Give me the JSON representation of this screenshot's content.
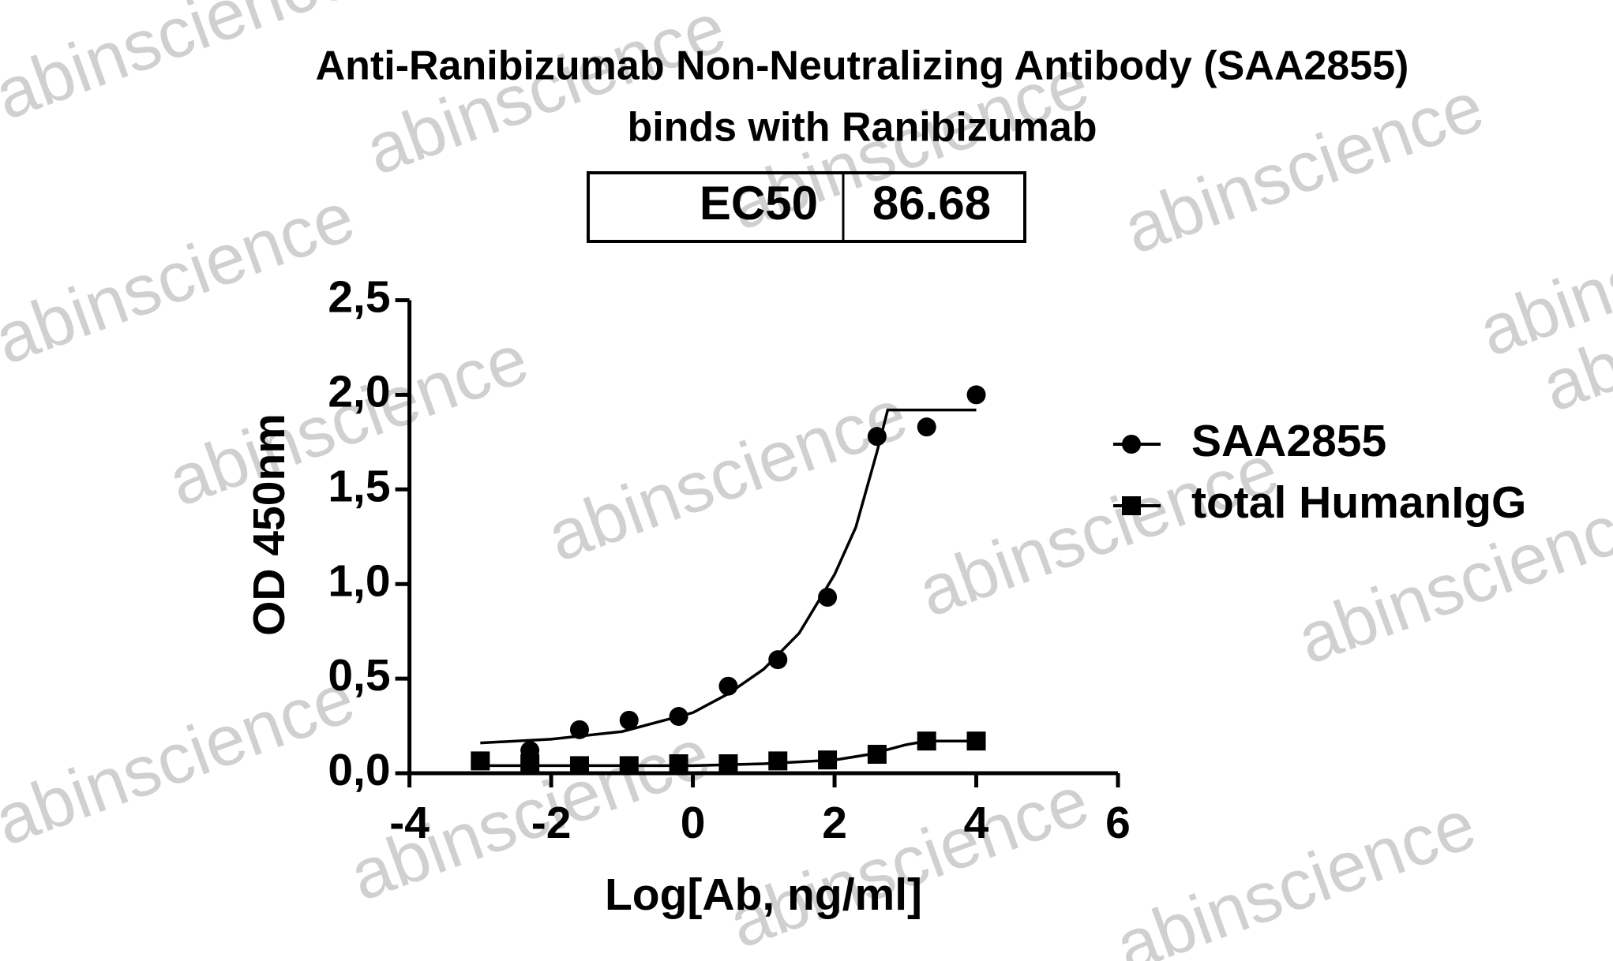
{
  "chart_data": {
    "type": "scatter",
    "title_lines": [
      "Anti-Ranibizumab Non-Neutralizing Antibody (SAA2855)",
      "binds with Ranibizumab"
    ],
    "ec50_table": {
      "label": "EC50",
      "value": 86.68
    },
    "x_label": "Log[Ab, ng/ml]",
    "y_label": "OD 450nm",
    "xlim": [
      -4,
      6
    ],
    "xticks": [
      -4,
      -2,
      0,
      2,
      4,
      6
    ],
    "ylim": [
      0,
      2.5
    ],
    "yticks": [
      {
        "value": 0,
        "label": "0,0"
      },
      {
        "value": 0.5,
        "label": "0,5"
      },
      {
        "value": 1,
        "label": "1,0"
      },
      {
        "value": 1.5,
        "label": "1,5"
      },
      {
        "value": 2,
        "label": "2,0"
      },
      {
        "value": 2.5,
        "label": "2,5"
      }
    ],
    "x": [
      -3.0,
      -2.3,
      -1.6,
      -0.9,
      -0.2,
      0.5,
      1.2,
      1.9,
      2.6,
      3.3,
      4.0
    ],
    "series": [
      {
        "name": "SAA2855",
        "color": "#000000",
        "marker": "circle",
        "values": [
          0.065,
          0.12,
          0.23,
          0.28,
          0.3,
          0.46,
          0.6,
          0.93,
          1.78,
          1.83,
          2.0
        ],
        "fit": {
          "x": [
            -3,
            -2,
            -1,
            0,
            0.5,
            1,
            1.5,
            2,
            2.3,
            2.6,
            2.75,
            3,
            4
          ],
          "y": [
            0.16,
            0.18,
            0.22,
            0.32,
            0.42,
            0.55,
            0.74,
            1.05,
            1.3,
            1.7,
            1.92,
            1.92,
            1.92
          ]
        }
      },
      {
        "name": "total HumanIgG",
        "color": "#000000",
        "marker": "square",
        "values": [
          0.065,
          0.05,
          0.04,
          0.04,
          0.05,
          0.05,
          0.065,
          0.07,
          0.1,
          0.17,
          0.17
        ],
        "fit": {
          "x": [
            -3,
            0,
            1,
            2,
            2.5,
            3,
            3.3,
            4
          ],
          "y": [
            0.04,
            0.04,
            0.05,
            0.07,
            0.1,
            0.15,
            0.17,
            0.17
          ]
        }
      }
    ],
    "watermark": "abinscience"
  }
}
